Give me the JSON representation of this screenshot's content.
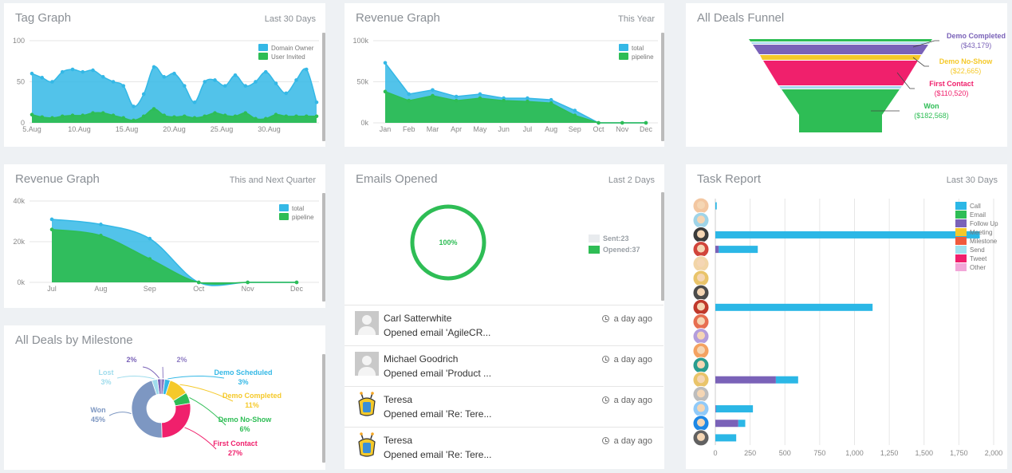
{
  "colors": {
    "blue": "#34b8e6",
    "green": "#2ebd55",
    "purple": "#7a62b8",
    "yellow": "#f5c92a",
    "pink": "#f0206c",
    "grey": "#c4c9ce"
  },
  "tag_graph": {
    "title": "Tag Graph",
    "subtitle": "Last 30 Days",
    "chart_data": {
      "type": "area",
      "x_ticks": [
        "5.Aug",
        "10.Aug",
        "15.Aug",
        "20.Aug",
        "25.Aug",
        "30.Aug"
      ],
      "y_ticks": [
        "0",
        "50",
        "100"
      ],
      "ylim": [
        0,
        100
      ],
      "legend_position": "top-right",
      "series": [
        {
          "name": "Domain Owner",
          "values": [
            60,
            55,
            50,
            62,
            65,
            62,
            64,
            56,
            50,
            45,
            20,
            35,
            68,
            56,
            60,
            45,
            25,
            50,
            52,
            45,
            58,
            45,
            50,
            62,
            48,
            36,
            52,
            65,
            25
          ]
        },
        {
          "name": "User Invited",
          "values": [
            10,
            7,
            6,
            8,
            9,
            9,
            12,
            12,
            9,
            6,
            3,
            8,
            17,
            9,
            7,
            8,
            6,
            8,
            12,
            9,
            8,
            12,
            5,
            5,
            10,
            8,
            8,
            8,
            8
          ]
        }
      ]
    }
  },
  "revenue_year": {
    "title": "Revenue Graph",
    "subtitle": "This Year",
    "chart_data": {
      "type": "area",
      "categories": [
        "Jan",
        "Feb",
        "Mar",
        "Apr",
        "May",
        "Jun",
        "Jul",
        "Aug",
        "Sep",
        "Oct",
        "Nov",
        "Dec"
      ],
      "y_ticks": [
        "0k",
        "50k",
        "100k"
      ],
      "ylim": [
        0,
        100000
      ],
      "legend_position": "top-right",
      "series": [
        {
          "name": "total",
          "values": [
            73000,
            35000,
            40000,
            32000,
            35000,
            30000,
            30000,
            28000,
            15000,
            0,
            0,
            0
          ]
        },
        {
          "name": "pipeline",
          "values": [
            38000,
            27000,
            33000,
            27000,
            30000,
            27000,
            26000,
            24000,
            9000,
            0,
            0,
            0
          ]
        }
      ]
    }
  },
  "deals_funnel": {
    "title": "All Deals Funnel",
    "labels": [
      {
        "name": "Demo Completed",
        "value": "($43,179)"
      },
      {
        "name": "Demo No-Show",
        "value": "($22,665)"
      },
      {
        "name": "First Contact",
        "value": "($110,520)"
      },
      {
        "name": "Won",
        "value": "($182,568)"
      }
    ]
  },
  "revenue_quarter": {
    "title": "Revenue Graph",
    "subtitle": "This and Next Quarter",
    "chart_data": {
      "type": "area",
      "categories": [
        "Jul",
        "Aug",
        "Sep",
        "Oct",
        "Nov",
        "Dec"
      ],
      "y_ticks": [
        "0k",
        "20k",
        "40k"
      ],
      "ylim": [
        0,
        40000
      ],
      "legend_position": "top-right",
      "series": [
        {
          "name": "total",
          "values": [
            31000,
            28500,
            21500,
            0,
            0,
            0
          ]
        },
        {
          "name": "pipeline",
          "values": [
            26000,
            23000,
            11500,
            0,
            0,
            0
          ]
        }
      ]
    }
  },
  "emails_opened": {
    "title": "Emails Opened",
    "subtitle": "Last 2 Days",
    "percent_label": "100%",
    "legend": [
      {
        "label": "Sent:23"
      },
      {
        "label": "Opened:37"
      }
    ],
    "rows": [
      {
        "name": "Carl Satterwhite",
        "message": "Opened email 'AgileCR...",
        "time": "a day ago",
        "avatar": "person-placeholder"
      },
      {
        "name": "Michael Goodrich",
        "message": "Opened email 'Product ...",
        "time": "a day ago",
        "avatar": "person-placeholder"
      },
      {
        "name": "Teresa",
        "message": "Opened email 'Re: Tere...",
        "time": "a day ago",
        "avatar": "ufo-logo"
      },
      {
        "name": "Teresa",
        "message": "Opened email 'Re: Tere...",
        "time": "a day ago",
        "avatar": "ufo-logo"
      }
    ]
  },
  "deals_milestone": {
    "title": "All Deals by Milestone",
    "chart_data": {
      "type": "pie",
      "slices": [
        {
          "label": "",
          "pct": "2%",
          "value": 2,
          "color": "#7a62b8"
        },
        {
          "label": "",
          "pct": "2%",
          "value": 2,
          "color": "#8e7cc3"
        },
        {
          "label": "Demo Scheduled",
          "pct": "3%",
          "value": 3,
          "color": "#34b8e6"
        },
        {
          "label": "Demo Completed",
          "pct": "11%",
          "value": 11,
          "color": "#f5c92a"
        },
        {
          "label": "Demo No-Show",
          "pct": "6%",
          "value": 6,
          "color": "#2ebd55"
        },
        {
          "label": "First Contact",
          "pct": "27%",
          "value": 27,
          "color": "#f0206c"
        },
        {
          "label": "Won",
          "pct": "45%",
          "value": 45,
          "color": "#7d97c2"
        },
        {
          "label": "Lost",
          "pct": "3%",
          "value": 3,
          "color": "#9fdcec"
        }
      ]
    }
  },
  "task_report": {
    "title": "Task Report",
    "subtitle": "Last 30 Days",
    "chart_data": {
      "type": "bar",
      "orientation": "horizontal",
      "stacked": true,
      "x_ticks": [
        "0",
        "250",
        "500",
        "750",
        "1,000",
        "1,250",
        "1,500",
        "1,750",
        "2,000"
      ],
      "xlim": [
        0,
        2000
      ],
      "legend_position": "top-right",
      "legend": [
        {
          "name": "Call",
          "color": "#2bb7e6"
        },
        {
          "name": "Email",
          "color": "#2ebd55"
        },
        {
          "name": "Follow Up",
          "color": "#7a62b8"
        },
        {
          "name": "Meeting",
          "color": "#f5c92a"
        },
        {
          "name": "Milestone",
          "color": "#f05a3c"
        },
        {
          "name": "Send",
          "color": "#9fe2ee"
        },
        {
          "name": "Tweet",
          "color": "#f0206c"
        },
        {
          "name": "Other",
          "color": "#f2a6d8"
        }
      ],
      "rows": [
        {
          "follow_up": 0,
          "call": 10
        },
        {
          "follow_up": 0,
          "call": 0
        },
        {
          "follow_up": 0,
          "call": 1900
        },
        {
          "follow_up": 25,
          "call": 280
        },
        {
          "follow_up": 0,
          "call": 0
        },
        {
          "follow_up": 0,
          "call": 0
        },
        {
          "follow_up": 0,
          "call": 0
        },
        {
          "follow_up": 0,
          "call": 1130
        },
        {
          "follow_up": 0,
          "call": 0
        },
        {
          "follow_up": 0,
          "call": 0
        },
        {
          "follow_up": 0,
          "call": 0
        },
        {
          "follow_up": 0,
          "call": 0
        },
        {
          "follow_up": 435,
          "call": 160
        },
        {
          "follow_up": 0,
          "call": 0
        },
        {
          "follow_up": 5,
          "call": 265
        },
        {
          "follow_up": 165,
          "call": 50
        },
        {
          "follow_up": 0,
          "call": 150
        }
      ]
    }
  }
}
